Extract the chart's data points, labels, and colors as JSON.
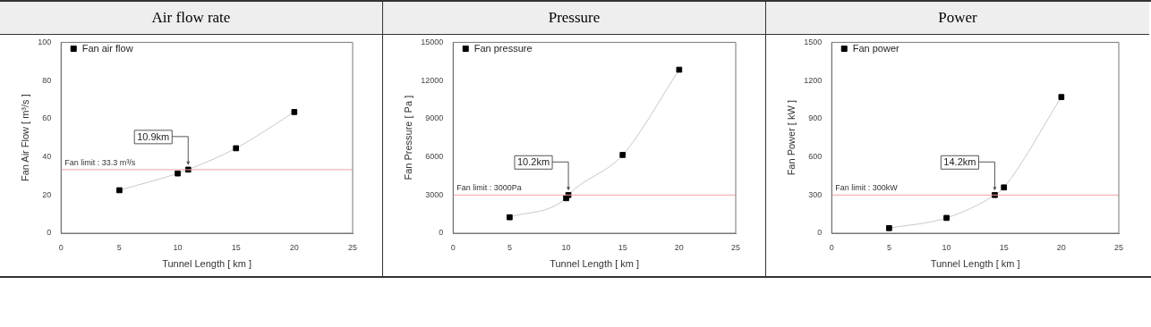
{
  "chart_data": [
    {
      "type": "line",
      "title": "Air  flow  rate",
      "xlabel": "Tunnel Length [ km ]",
      "ylabel": "Fan Air Flow [ m³/s ]",
      "xlim": [
        0,
        25
      ],
      "xticks": [
        0,
        5,
        10,
        15,
        20,
        25
      ],
      "ylim": [
        0,
        100
      ],
      "yticks": [
        0,
        20,
        40,
        60,
        80,
        100
      ],
      "marker": "square",
      "line_style": "solid",
      "legend": "top left",
      "grid": false,
      "series": [
        {
          "name": "Fan air flow",
          "color": "#000000",
          "x": [
            5,
            10,
            10.9,
            15,
            20
          ],
          "values": [
            22.5,
            31.3,
            33.3,
            44.5,
            63.5
          ]
        }
      ],
      "ref_lines": [
        {
          "axis": "y",
          "value": 33.3,
          "label": "Fan limit : 33.3 m³/s",
          "color": "#f4a0a0"
        }
      ],
      "annotations": [
        {
          "text": "10.9km",
          "x": 10.9,
          "y": 33.3
        }
      ]
    },
    {
      "type": "line",
      "title": "Pressure",
      "xlabel": "Tunnel Length [ km ]",
      "ylabel": "Fan Pressure [ Pa ]",
      "xlim": [
        0,
        25
      ],
      "xticks": [
        0,
        5,
        10,
        15,
        20,
        25
      ],
      "ylim": [
        0,
        15000
      ],
      "yticks": [
        0,
        3000,
        6000,
        9000,
        12000,
        15000
      ],
      "marker": "square",
      "line_style": "solid",
      "legend": "top left",
      "grid": false,
      "series": [
        {
          "name": "Fan pressure",
          "color": "#000000",
          "x": [
            5,
            10,
            10.2,
            15,
            20
          ],
          "values": [
            1250,
            2750,
            3000,
            6150,
            12850
          ]
        }
      ],
      "ref_lines": [
        {
          "axis": "y",
          "value": 3000,
          "label": "Fan limit : 3000Pa",
          "color": "#f4a0a0"
        }
      ],
      "annotations": [
        {
          "text": "10.2km",
          "x": 10.2,
          "y": 3000
        }
      ]
    },
    {
      "type": "line",
      "title": "Power",
      "xlabel": "Tunnel Length [ km ]",
      "ylabel": "Fan Power [ kW ]",
      "xlim": [
        0,
        25
      ],
      "xticks": [
        0,
        5,
        10,
        15,
        20,
        25
      ],
      "ylim": [
        0,
        1500
      ],
      "yticks": [
        0,
        300,
        600,
        900,
        1200,
        1500
      ],
      "marker": "square",
      "line_style": "solid",
      "legend": "top left",
      "grid": false,
      "series": [
        {
          "name": "Fan power",
          "color": "#000000",
          "x": [
            5,
            10,
            14.2,
            15,
            20
          ],
          "values": [
            40,
            120,
            300,
            360,
            1070
          ]
        }
      ],
      "ref_lines": [
        {
          "axis": "y",
          "value": 300,
          "label": "Fan limit : 300kW",
          "color": "#f4a0a0"
        }
      ],
      "annotations": [
        {
          "text": "14.2km",
          "x": 14.2,
          "y": 300
        }
      ]
    }
  ]
}
